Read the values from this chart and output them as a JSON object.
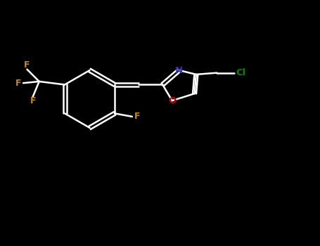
{
  "background_color": "#000000",
  "bond_color": "#ffffff",
  "N_color": "#3333bb",
  "O_color": "#cc0000",
  "F_color": "#cc8800",
  "Cl_color": "#008800",
  "figsize": [
    4.55,
    3.5
  ],
  "dpi": 100,
  "lw": 1.8,
  "font_size": 9,
  "xlim": [
    0,
    10
  ],
  "ylim": [
    0,
    7.7
  ]
}
